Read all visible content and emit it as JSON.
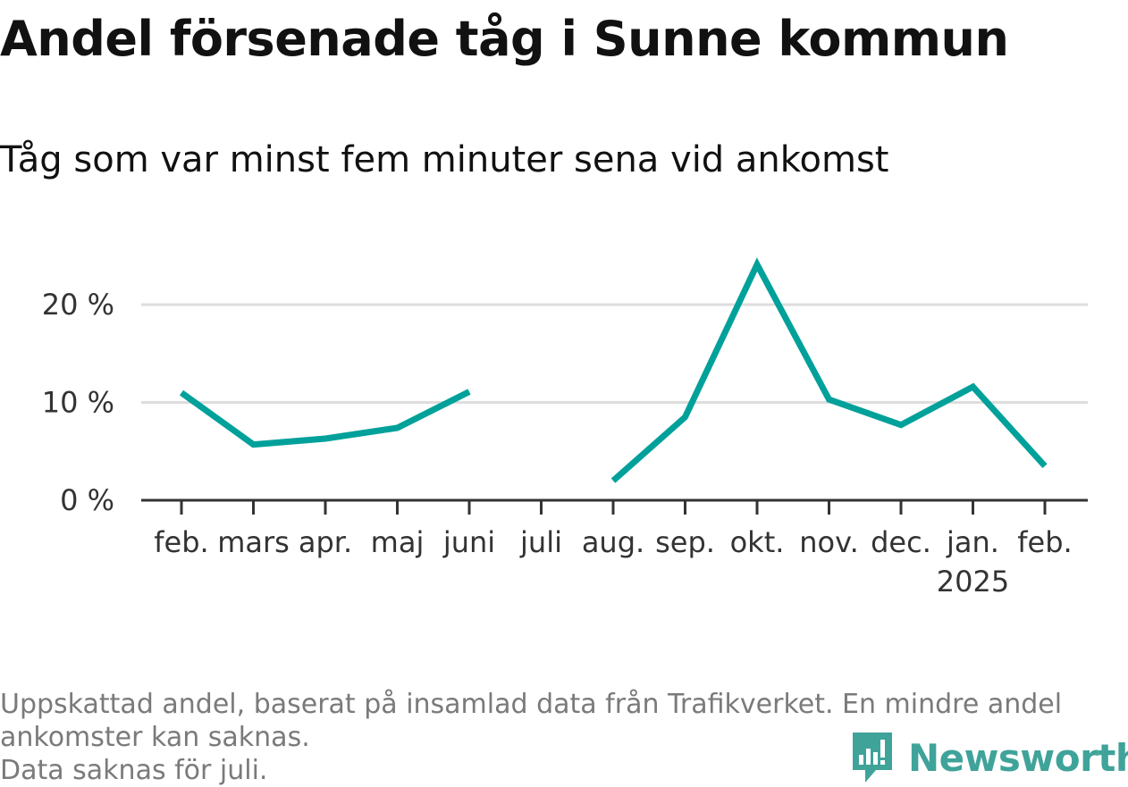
{
  "title": "Andel försenade tåg i Sunne kommun",
  "subtitle": "Tåg som var minst fem minuter sena vid ankomst",
  "footnote": {
    "line1": "Uppskattad andel, baserat på insamlad data från Trafikverket. En mindre andel",
    "line2": "ankomster kan saknas.",
    "line3": "Data saknas för juli."
  },
  "brand": {
    "name": "Newsworthy",
    "color": "#3fa39a",
    "icon": "bar-chart-badge-icon"
  },
  "chart_data": {
    "type": "line",
    "title": "Andel försenade tåg i Sunne kommun",
    "subtitle": "Tåg som var minst fem minuter sena vid ankomst",
    "categories": [
      "feb.",
      "mars",
      "apr.",
      "maj",
      "juni",
      "juli",
      "aug.",
      "sep.",
      "okt.",
      "nov.",
      "dec.",
      "jan.",
      "feb."
    ],
    "year_labels": [
      "",
      "",
      "",
      "",
      "",
      "",
      "",
      "",
      "",
      "",
      "",
      "2025",
      ""
    ],
    "series": [
      {
        "color": "#00a19a",
        "values": [
          11,
          5.7,
          6.3,
          7.4,
          11.1,
          null,
          2.0,
          8.5,
          24.1,
          10.3,
          7.7,
          11.6,
          3.5
        ]
      }
    ],
    "yticks": [
      {
        "value": 0,
        "label": "0 %"
      },
      {
        "value": 10,
        "label": "10 %"
      },
      {
        "value": 20,
        "label": "20 %"
      }
    ],
    "ylim": [
      0,
      25
    ],
    "grid": true,
    "gridline_color": "#dddddd",
    "axis_color": "#333333"
  }
}
